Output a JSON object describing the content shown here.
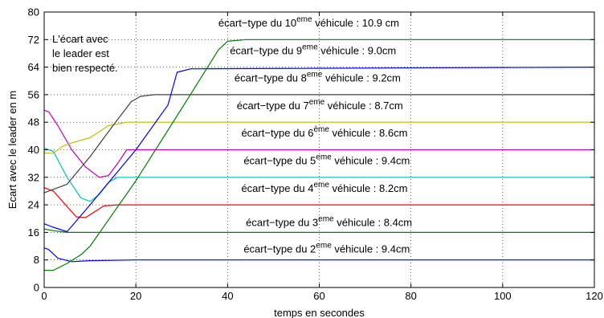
{
  "chart_data": {
    "type": "line",
    "xlabel": "temps en secondes",
    "ylabel": "Ecart avec le leader en m",
    "xlim": [
      0,
      120
    ],
    "ylim": [
      0,
      80
    ],
    "xticks": [
      0,
      20,
      40,
      60,
      80,
      100,
      120
    ],
    "yticks": [
      0,
      8,
      16,
      24,
      32,
      40,
      48,
      56,
      64,
      72,
      80
    ],
    "grid": true,
    "note": [
      "L'écart avec",
      "le leader est",
      "bien respecté."
    ],
    "series": [
      {
        "color": "#0000ff",
        "x": [
          0,
          1,
          3,
          6,
          10,
          20,
          120
        ],
        "y": [
          11.5,
          11,
          8.5,
          7.5,
          7.8,
          8,
          8
        ]
      },
      {
        "color": "#008000",
        "x": [
          0,
          2,
          5,
          10,
          120
        ],
        "y": [
          17,
          16.5,
          16,
          16,
          16
        ]
      },
      {
        "color": "#ff0000",
        "x": [
          0,
          2,
          4,
          7,
          9,
          11,
          13,
          16,
          120
        ],
        "y": [
          29,
          28,
          25,
          20.5,
          20.3,
          22,
          23.7,
          24,
          24
        ]
      },
      {
        "color": "#00bfbf",
        "x": [
          0,
          2,
          5,
          8,
          10,
          12,
          14,
          16,
          120
        ],
        "y": [
          40.5,
          39.5,
          32,
          26,
          25,
          27,
          30.5,
          32,
          32
        ]
      },
      {
        "color": "#bf00bf",
        "x": [
          0,
          1,
          3,
          6,
          9,
          12,
          14,
          16,
          18,
          120
        ],
        "y": [
          51.5,
          51,
          47,
          40,
          35,
          32,
          32.5,
          36,
          40,
          40
        ]
      },
      {
        "color": "#bfbf00",
        "x": [
          0,
          2,
          4,
          6,
          10,
          14,
          18,
          120
        ],
        "y": [
          39,
          39,
          41,
          42,
          43.5,
          47,
          48,
          48
        ]
      },
      {
        "color": "#404040",
        "x": [
          0,
          3,
          5,
          10,
          15,
          19,
          21,
          24,
          120
        ],
        "y": [
          27.5,
          29,
          30,
          38,
          47,
          54,
          55.5,
          56,
          56
        ]
      },
      {
        "color": "#0000ff",
        "x": [
          0,
          2,
          5,
          10,
          20,
          27,
          29,
          32,
          120
        ],
        "y": [
          18.5,
          17.5,
          16.2,
          24,
          40,
          53,
          62.5,
          63.5,
          64
        ]
      },
      {
        "color": "#008000",
        "x": [
          0,
          2,
          5,
          8,
          10,
          20,
          30,
          38,
          40,
          44,
          120
        ],
        "y": [
          5,
          5,
          7,
          9.5,
          12,
          31,
          52,
          69,
          71.5,
          72,
          72
        ]
      }
    ],
    "labels": [
      {
        "pre": "écart−type du 10",
        "sup": "eme",
        "post": " véhicule : 10.9 cm",
        "x": 38,
        "y": 75.8
      },
      {
        "pre": "écart−type du 9",
        "sup": "eme",
        "post": " véhicule : 9.0cm",
        "x": 40.5,
        "y": 67.8
      },
      {
        "pre": "écart−type du 8",
        "sup": "eme",
        "post": " véhicule : 9.2cm",
        "x": 41.5,
        "y": 59.8
      },
      {
        "pre": "écart−type du 7",
        "sup": "eme",
        "post": " véhicule : 8.7cm",
        "x": 42,
        "y": 51.8
      },
      {
        "pre": "écart−type du 6",
        "sup": "ème",
        "post": " véhicule : 8.6cm",
        "x": 43,
        "y": 43.8
      },
      {
        "pre": "écart−type du 5",
        "sup": "eme",
        "post": " véhicule : 9.4cm",
        "x": 43.5,
        "y": 35.8
      },
      {
        "pre": "écart−type du 4",
        "sup": "eme",
        "post": " véhicule : 8.2cm",
        "x": 43,
        "y": 27.8
      },
      {
        "pre": "écart−type du 3",
        "sup": "eme",
        "post": " véhicule : 8.4cm",
        "x": 44,
        "y": 17.9
      },
      {
        "pre": "écart−type du 2",
        "sup": "eme",
        "post": " véhicule : 9.4cm",
        "x": 43.5,
        "y": 10.2
      }
    ]
  }
}
